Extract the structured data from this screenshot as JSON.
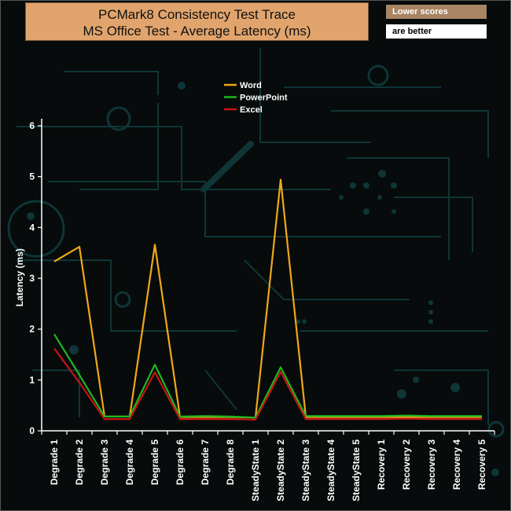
{
  "header": {
    "title_line1": "PCMark8 Consistency Test Trace",
    "title_line2": "MS Office Test -  Average Latency (ms)"
  },
  "note": {
    "line1": "Lower scores",
    "line2": "are better"
  },
  "colors": {
    "background": "#070b0b",
    "circuit": "#0f3537",
    "title_box": "#e1a46c",
    "note_box": "#a88563"
  },
  "chart_data": {
    "type": "line",
    "title": "PCMark8 Consistency Test Trace MS Office Test - Average Latency (ms)",
    "xlabel": "",
    "ylabel": "Latency (ms)",
    "ylim": [
      0,
      6
    ],
    "yticks": [
      "0",
      "1",
      "2",
      "3",
      "4",
      "5",
      "6"
    ],
    "grid": false,
    "legend_position": "top-center",
    "categories": [
      "Degrade 1",
      "Degrade 2",
      "Degrade 3",
      "Degrade 4",
      "Degrade 5",
      "Degrade 6",
      "Degrade 7",
      "Degrade 8",
      "SteadyState 1",
      "SteadyState 2",
      "SteadyState 3",
      "SteadyState 4",
      "SteadyState 5",
      "Recovery 1",
      "Recovery 2",
      "Recovery 3",
      "Recovery 4",
      "Recovery 5"
    ],
    "series": [
      {
        "name": "Word",
        "color": "#f0a818",
        "values": [
          3.33,
          3.62,
          0.28,
          0.28,
          3.66,
          0.27,
          0.27,
          0.27,
          0.26,
          4.94,
          0.27,
          0.27,
          0.27,
          0.27,
          0.27,
          0.27,
          0.27,
          0.27
        ]
      },
      {
        "name": "PowerPoint",
        "color": "#1fb81f",
        "values": [
          1.9,
          1.1,
          0.28,
          0.28,
          1.3,
          0.28,
          0.29,
          0.28,
          0.26,
          1.25,
          0.29,
          0.29,
          0.29,
          0.29,
          0.3,
          0.29,
          0.29,
          0.29
        ]
      },
      {
        "name": "Excel",
        "color": "#c81414",
        "values": [
          1.62,
          0.95,
          0.23,
          0.23,
          1.15,
          0.23,
          0.23,
          0.23,
          0.22,
          1.16,
          0.23,
          0.23,
          0.23,
          0.23,
          0.24,
          0.23,
          0.23,
          0.23
        ]
      }
    ]
  }
}
